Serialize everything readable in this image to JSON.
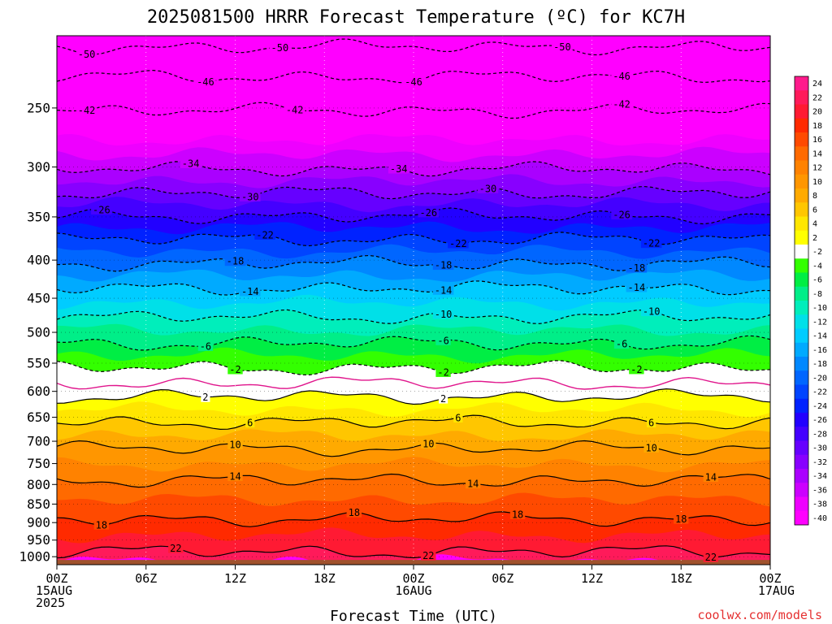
{
  "chart_data": {
    "type": "heatmap",
    "title": "2025081500 HRRR Forecast Temperature (ºC) for KC7H",
    "xlabel": "Forecast Time (UTC)",
    "credit": "coolwx.com/models",
    "x_ticks": [
      {
        "hour": 0,
        "lines": [
          "00Z",
          "15AUG",
          "2025"
        ]
      },
      {
        "hour": 6,
        "lines": [
          "06Z"
        ]
      },
      {
        "hour": 12,
        "lines": [
          "12Z"
        ]
      },
      {
        "hour": 18,
        "lines": [
          "18Z"
        ]
      },
      {
        "hour": 24,
        "lines": [
          "00Z",
          "16AUG"
        ]
      },
      {
        "hour": 30,
        "lines": [
          "06Z"
        ]
      },
      {
        "hour": 36,
        "lines": [
          "12Z"
        ]
      },
      {
        "hour": 42,
        "lines": [
          "18Z"
        ]
      },
      {
        "hour": 48,
        "lines": [
          "00Z",
          "17AUG"
        ]
      }
    ],
    "xlim": [
      0,
      48
    ],
    "y_ticks": [
      250,
      300,
      350,
      400,
      450,
      500,
      550,
      600,
      650,
      700,
      750,
      800,
      850,
      900,
      950,
      1000
    ],
    "ylim_hpa": [
      200,
      1025
    ],
    "y_scale": "log",
    "y_inverted": true,
    "ground_color": "#a0522d",
    "colorbar": {
      "labels": [
        "24",
        "22",
        "20",
        "18",
        "16",
        "14",
        "12",
        "10",
        "8",
        "6",
        "4",
        "2",
        "-2",
        "-4",
        "-6",
        "-8",
        "-10",
        "-12",
        "-14",
        "-16",
        "-18",
        "-20",
        "-22",
        "-24",
        "-26",
        "-28",
        "-30",
        "-32",
        "-34",
        "-36",
        "-38",
        "-40"
      ],
      "colors": [
        "#ff1a8c",
        "#ff1a5a",
        "#ff1a33",
        "#ff2a00",
        "#ff4a00",
        "#ff6a00",
        "#ff8200",
        "#ff9600",
        "#ffaa00",
        "#ffc600",
        "#ffe600",
        "#ffff00",
        "#ffffff",
        "#33ff00",
        "#00ee44",
        "#00ee88",
        "#00eebb",
        "#00e0e8",
        "#00ccff",
        "#00aaff",
        "#0088ff",
        "#0066ff",
        "#0044ff",
        "#0022ff",
        "#2200ff",
        "#4400ff",
        "#6600ff",
        "#8800ff",
        "#aa00ff",
        "#cc00ff",
        "#ee00ff",
        "#ff00ff"
      ]
    },
    "isotherms": [
      {
        "t": 22,
        "style": "solid",
        "label_hours": [
          8,
          25,
          44
        ]
      },
      {
        "t": 18,
        "style": "solid",
        "label_hours": [
          3,
          20,
          31,
          42
        ]
      },
      {
        "t": 14,
        "style": "solid",
        "label_hours": [
          12,
          28,
          44
        ]
      },
      {
        "t": 10,
        "style": "solid",
        "label_hours": [
          12,
          25,
          40
        ]
      },
      {
        "t": 6,
        "style": "solid",
        "label_hours": [
          13,
          27,
          40
        ]
      },
      {
        "t": 2,
        "style": "solid",
        "label_hours": [
          10,
          26
        ]
      },
      {
        "t": 0,
        "style": "magenta"
      },
      {
        "t": -2,
        "style": "dashed",
        "label_hours": [
          12,
          26,
          39
        ]
      },
      {
        "t": -6,
        "style": "dashed",
        "label_hours": [
          10,
          26,
          38
        ]
      },
      {
        "t": -10,
        "style": "dashed",
        "label_hours": [
          26,
          40
        ]
      },
      {
        "t": -14,
        "style": "dashed",
        "label_hours": [
          13,
          26,
          39
        ]
      },
      {
        "t": -18,
        "style": "dashed",
        "label_hours": [
          12,
          26,
          39
        ]
      },
      {
        "t": -22,
        "style": "dashed",
        "label_hours": [
          14,
          27,
          40
        ]
      },
      {
        "t": -26,
        "style": "dashed",
        "label_hours": [
          3,
          25,
          38
        ]
      },
      {
        "t": -30,
        "style": "dashed",
        "label_hours": [
          13,
          29
        ]
      },
      {
        "t": -34,
        "style": "dashed",
        "label_hours": [
          9,
          23
        ]
      },
      {
        "t": -42,
        "style": "dashed",
        "label_hours": [
          2,
          16,
          38
        ]
      },
      {
        "t": -46,
        "style": "dashed",
        "label_hours": [
          10,
          24,
          38
        ]
      },
      {
        "t": -50,
        "style": "dashed",
        "label_hours": [
          2,
          15,
          34
        ]
      }
    ],
    "profile": [
      {
        "t": 24,
        "p": 1015
      },
      {
        "t": 22,
        "p": 985
      },
      {
        "t": 18,
        "p": 890
      },
      {
        "t": 14,
        "p": 790
      },
      {
        "t": 10,
        "p": 716
      },
      {
        "t": 6,
        "p": 660
      },
      {
        "t": 2,
        "p": 610
      },
      {
        "t": 0,
        "p": 585
      },
      {
        "t": -2,
        "p": 558
      },
      {
        "t": -6,
        "p": 517
      },
      {
        "t": -10,
        "p": 477
      },
      {
        "t": -14,
        "p": 436
      },
      {
        "t": -18,
        "p": 404
      },
      {
        "t": -22,
        "p": 375
      },
      {
        "t": -26,
        "p": 349
      },
      {
        "t": -30,
        "p": 325
      },
      {
        "t": -34,
        "p": 302
      },
      {
        "t": -42,
        "p": 252
      },
      {
        "t": -46,
        "p": 227
      },
      {
        "t": -50,
        "p": 207
      }
    ]
  }
}
